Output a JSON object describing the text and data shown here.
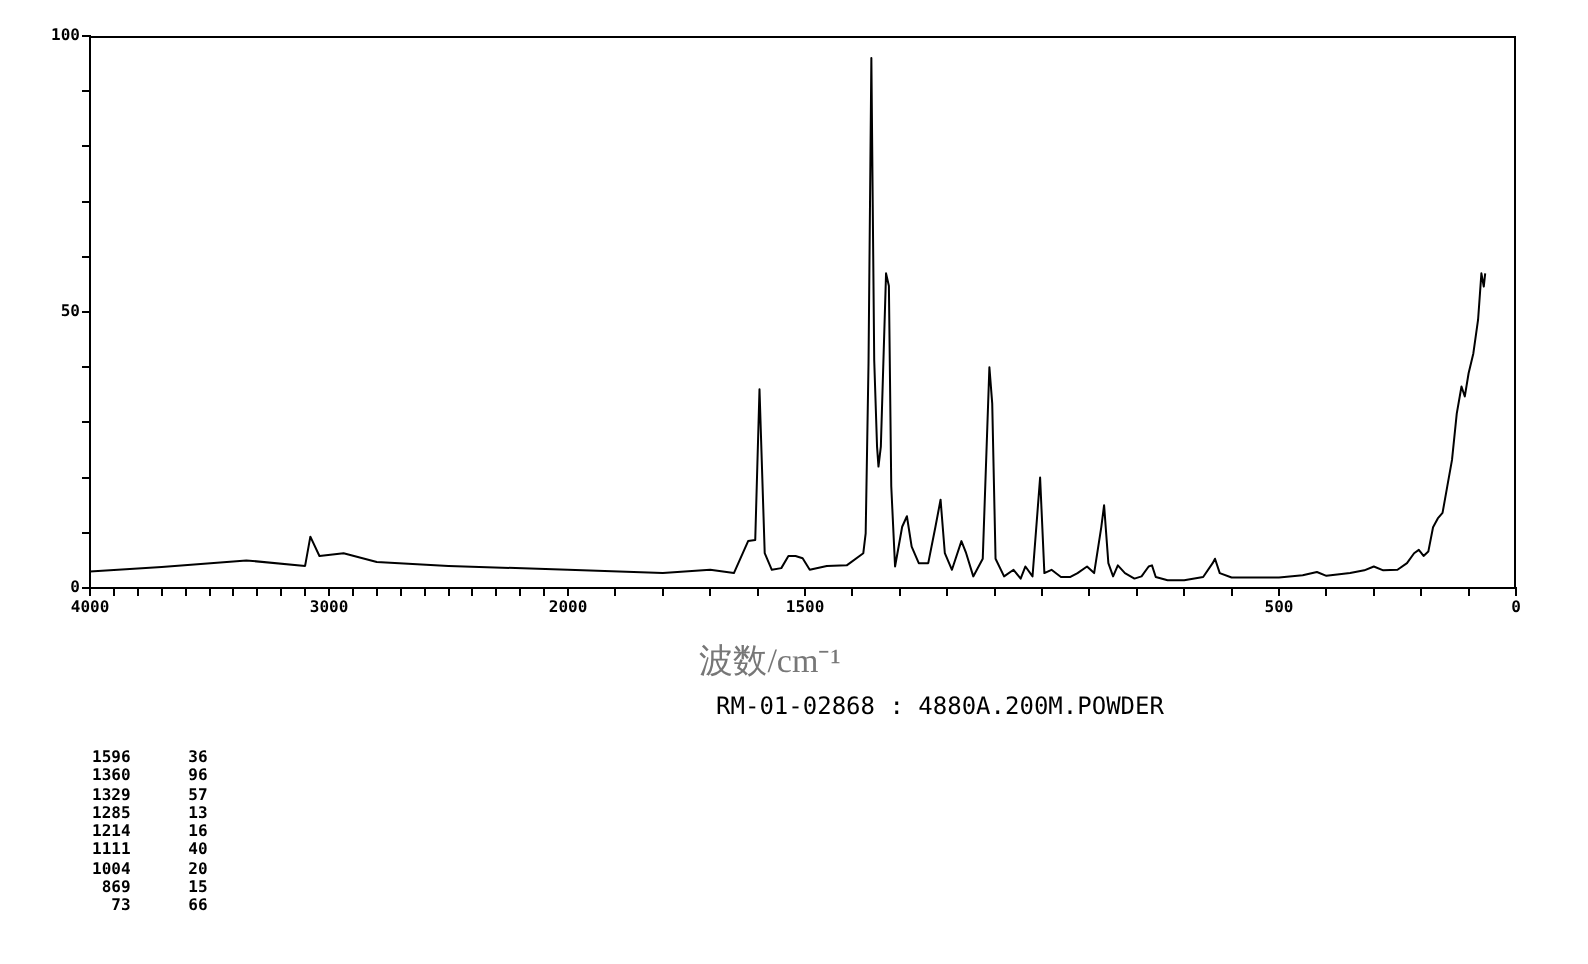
{
  "chart_data": [
    {
      "type": "line",
      "annotations": [
        "1596      36",
        "1360      96",
        "1329      57",
        "1285      13",
        "1214      16",
        "1111      40",
        "1004      20",
        " 869      15",
        "  73      66"
      ],
      "x": [
        4000,
        3700,
        3346,
        3100,
        3078,
        3040,
        2939,
        2800,
        2500,
        2000
      ],
      "series": [
        {
          "color": "#000000",
          "values": [
            3,
            3.8,
            5,
            4,
            9.3,
            5.8,
            6.3,
            4.7,
            4,
            3.3
          ]
        }
      ],
      "xlim": [
        4000,
        2000
      ],
      "xticks": [
        4000,
        {
          "value": 3900,
          "label": null
        },
        {
          "value": 3800,
          "label": null
        },
        {
          "value": 3700,
          "label": null
        },
        {
          "value": 3600,
          "label": null
        },
        {
          "value": 3500,
          "label": null
        },
        {
          "value": 3400,
          "label": null
        },
        {
          "value": 3300,
          "label": null
        },
        {
          "value": 3200,
          "label": null
        },
        {
          "value": 3100,
          "label": null
        },
        3000,
        {
          "value": 2900,
          "label": null
        },
        {
          "value": 2800,
          "label": null
        },
        {
          "value": 2700,
          "label": null
        },
        {
          "value": 2600,
          "label": null
        },
        {
          "value": 2500,
          "label": null
        },
        {
          "value": 2400,
          "label": null
        },
        {
          "value": 2300,
          "label": null
        },
        {
          "value": 2200,
          "label": null
        },
        {
          "value": 2100,
          "label": null
        },
        2000
      ],
      "ylim": [
        0,
        100
      ],
      "yticks": [
        0,
        {
          "value": 10,
          "label": null
        },
        {
          "value": 20,
          "label": null
        },
        {
          "value": 30,
          "label": null
        },
        {
          "value": 40,
          "label": null
        },
        50,
        {
          "value": 60,
          "label": null
        },
        {
          "value": 70,
          "label": null
        },
        {
          "value": 80,
          "label": null
        },
        {
          "value": 90,
          "label": null
        },
        100
      ]
    },
    {
      "type": "line",
      "xlabel": "波数/cm⁻¹",
      "annotations": [
        "RM-01-02868 : 4880A.200M.POWDER"
      ],
      "x": [
        2000,
        1800,
        1700,
        1650,
        1620,
        1605,
        1596,
        1585,
        1570,
        1550,
        1535,
        1520,
        1505,
        1490,
        1454,
        1412,
        1377,
        1372,
        1366,
        1360,
        1354,
        1348,
        1345,
        1340,
        1329,
        1323,
        1318,
        1310,
        1295,
        1285,
        1275,
        1260,
        1240,
        1225,
        1214,
        1205,
        1190,
        1170,
        1160,
        1145,
        1125,
        1111,
        1105,
        1098,
        1080,
        1060,
        1045,
        1035,
        1020,
        1004,
        995,
        980,
        960,
        940,
        925,
        905,
        890,
        875,
        869,
        860,
        850,
        840,
        825,
        805,
        790,
        775,
        768,
        760,
        735,
        700,
        660,
        640,
        635,
        625,
        600,
        550,
        500,
        450,
        420,
        400,
        350,
        320,
        300,
        280,
        250,
        230,
        215,
        205,
        195,
        185,
        175,
        165,
        155,
        145,
        135,
        125,
        115,
        108,
        100,
        90,
        80,
        73,
        68,
        65
      ],
      "series": [
        {
          "color": "#000000",
          "values": [
            3.3,
            2.7,
            3.3,
            2.7,
            8.5,
            8.7,
            36,
            6.3,
            3.3,
            3.6,
            5.8,
            5.8,
            5.4,
            3.3,
            4,
            4.1,
            6.3,
            9.9,
            40.7,
            96,
            41.3,
            25.6,
            22,
            25.6,
            57,
            54.7,
            18.4,
            3.9,
            11.1,
            13,
            7.5,
            4.5,
            4.5,
            11,
            16,
            6.3,
            3.3,
            8.5,
            6.3,
            2.1,
            5.3,
            40,
            33.4,
            5.3,
            2.1,
            3.3,
            1.7,
            3.9,
            2.1,
            20,
            2.7,
            3.3,
            2,
            2,
            2.7,
            3.9,
            2.7,
            11,
            15,
            4.5,
            2.1,
            4.1,
            2.7,
            1.7,
            2.1,
            3.9,
            4.1,
            2,
            1.4,
            1.4,
            2,
            4.5,
            5.3,
            2.7,
            1.9,
            1.9,
            1.9,
            2.3,
            2.9,
            2.2,
            2.7,
            3.2,
            3.9,
            3.2,
            3.3,
            4.5,
            6.3,
            6.9,
            5.8,
            6.6,
            11,
            12.6,
            13.6,
            18.4,
            23.2,
            31.6,
            36.5,
            34.7,
            38.9,
            42.5,
            48.6,
            57,
            54.6,
            57
          ]
        }
      ],
      "xlim": [
        2000,
        0
      ],
      "xticks": [
        {
          "value": 1900,
          "label": null
        },
        {
          "value": 1800,
          "label": null
        },
        {
          "value": 1700,
          "label": null
        },
        {
          "value": 1600,
          "label": null
        },
        1500,
        {
          "value": 1400,
          "label": null
        },
        {
          "value": 1300,
          "label": null
        },
        {
          "value": 1200,
          "label": null
        },
        {
          "value": 1100,
          "label": null
        },
        {
          "value": 1000,
          "label": null
        },
        {
          "value": 900,
          "label": null
        },
        {
          "value": 800,
          "label": null
        },
        {
          "value": 700,
          "label": null
        },
        {
          "value": 600,
          "label": null
        },
        500,
        {
          "value": 400,
          "label": null
        },
        {
          "value": 300,
          "label": null
        },
        {
          "value": 200,
          "label": null
        },
        {
          "value": 100,
          "label": null
        },
        0
      ],
      "ylim": [
        0,
        100
      ],
      "tick_labels": "x"
    }
  ]
}
